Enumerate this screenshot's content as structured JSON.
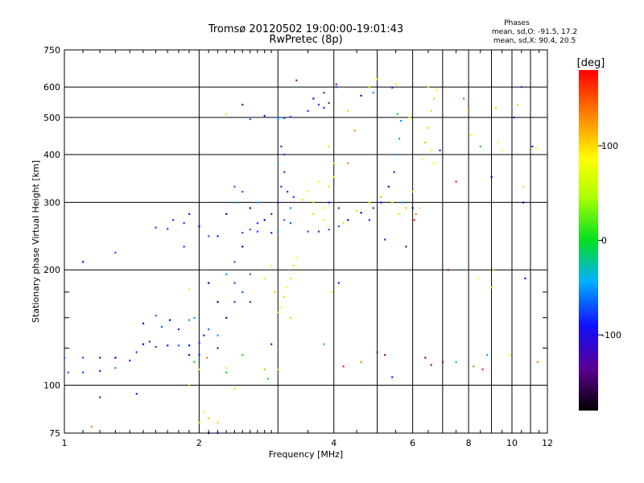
{
  "chart_data": {
    "type": "scatter",
    "title": "Tromsø 20120502 19:00:00-19:01:43",
    "subtitle": "RwPretec (8p)",
    "stats": {
      "heading": "Phases",
      "line1": "mean, sd,O: -91.5, 17.2",
      "line2": "mean, sd,X:  90.4, 20.5"
    },
    "xlabel": "Frequency [MHz]",
    "ylabel": "Stationary phase Virtual Height [km]",
    "x_scale": "log",
    "y_scale": "log",
    "xlim": [
      1,
      12
    ],
    "ylim": [
      75,
      750
    ],
    "x_ticks": [
      1,
      2,
      4,
      6,
      8,
      10,
      12
    ],
    "x_tick_labels": [
      "1",
      "2",
      "4",
      "6",
      "8",
      "10",
      "12"
    ],
    "x_minor_ticks": [
      3,
      5,
      7,
      9,
      11
    ],
    "y_ticks": [
      75,
      100,
      200,
      300,
      400,
      500,
      600,
      750
    ],
    "y_tick_labels": [
      "75",
      "100",
      "200",
      "300",
      "400",
      "500",
      "600",
      "750"
    ],
    "y_minor_ticks": [
      125,
      150,
      175
    ],
    "grid": true,
    "colorbar": {
      "label": "[deg]",
      "range": [
        -180,
        180
      ],
      "ticks": [
        100,
        0,
        -100
      ],
      "tick_labels": [
        "100",
        "0",
        "-100"
      ]
    },
    "series": [
      {
        "kind": "o-mode",
        "points": [
          [
            1.0,
            118
          ],
          [
            1.1,
            118
          ],
          [
            1.2,
            118
          ],
          [
            1.3,
            118
          ],
          [
            1.02,
            108
          ],
          [
            1.1,
            108
          ],
          [
            1.2,
            109
          ],
          [
            1.3,
            111
          ],
          [
            1.4,
            116
          ],
          [
            1.45,
            122
          ],
          [
            1.5,
            128
          ],
          [
            1.55,
            130
          ],
          [
            1.6,
            126
          ],
          [
            1.7,
            127
          ],
          [
            1.8,
            127
          ],
          [
            1.9,
            127
          ],
          [
            2.0,
            129
          ],
          [
            1.5,
            145
          ],
          [
            1.6,
            152
          ],
          [
            1.65,
            142
          ],
          [
            1.72,
            148
          ],
          [
            1.8,
            140
          ],
          [
            1.9,
            148
          ],
          [
            1.95,
            150
          ],
          [
            2.05,
            135
          ],
          [
            2.1,
            140
          ],
          [
            2.2,
            135
          ],
          [
            2.3,
            150
          ],
          [
            2.4,
            165
          ],
          [
            2.5,
            175
          ],
          [
            2.6,
            165
          ],
          [
            2.2,
            165
          ],
          [
            2.1,
            185
          ],
          [
            2.3,
            195
          ],
          [
            2.4,
            210
          ],
          [
            2.5,
            230
          ],
          [
            2.6,
            255
          ],
          [
            2.7,
            265
          ],
          [
            2.8,
            270
          ],
          [
            2.9,
            280
          ],
          [
            2.5,
            250
          ],
          [
            2.7,
            252
          ],
          [
            2.9,
            250
          ],
          [
            3.0,
            252
          ],
          [
            2.3,
            280
          ],
          [
            2.4,
            300
          ],
          [
            2.5,
            320
          ],
          [
            2.6,
            290
          ],
          [
            1.6,
            258
          ],
          [
            1.7,
            256
          ],
          [
            1.75,
            270
          ],
          [
            1.85,
            265
          ],
          [
            1.9,
            280
          ],
          [
            2.0,
            260
          ],
          [
            2.1,
            245
          ],
          [
            2.2,
            245
          ],
          [
            3.0,
            300
          ],
          [
            3.05,
            330
          ],
          [
            3.1,
            360
          ],
          [
            3.15,
            320
          ],
          [
            3.2,
            290
          ],
          [
            3.25,
            310
          ],
          [
            3.1,
            270
          ],
          [
            3.2,
            265
          ],
          [
            3.5,
            252
          ],
          [
            3.7,
            252
          ],
          [
            3.9,
            255
          ],
          [
            4.1,
            260
          ],
          [
            4.3,
            270
          ],
          [
            4.6,
            282
          ],
          [
            4.9,
            290
          ],
          [
            5.1,
            300
          ],
          [
            5.3,
            330
          ],
          [
            5.45,
            360
          ],
          [
            5.55,
            400
          ],
          [
            5.6,
            440
          ],
          [
            5.65,
            490
          ],
          [
            3.0,
            380
          ],
          [
            3.05,
            420
          ],
          [
            3.1,
            400
          ],
          [
            3.0,
            500
          ],
          [
            3.1,
            498
          ],
          [
            3.2,
            502
          ],
          [
            3.5,
            520
          ],
          [
            3.6,
            560
          ],
          [
            3.7,
            540
          ],
          [
            3.8,
            530
          ],
          [
            3.9,
            545
          ],
          [
            4.6,
            570
          ],
          [
            4.9,
            580
          ],
          [
            5.4,
            598
          ],
          [
            4.05,
            600
          ],
          [
            3.8,
            580
          ],
          [
            2.6,
            495
          ],
          [
            2.8,
            505
          ],
          [
            3.0,
            495
          ],
          [
            2.4,
            330
          ],
          [
            2.7,
            300
          ],
          [
            2.4,
            185
          ],
          [
            2.6,
            195
          ],
          [
            3.9,
            300
          ],
          [
            4.1,
            290
          ],
          [
            5.7,
            300
          ],
          [
            6.0,
            290
          ],
          [
            1.45,
            95
          ],
          [
            2.1,
            75
          ],
          [
            2.2,
            75
          ],
          [
            1.85,
            230
          ],
          [
            1.2,
            93
          ],
          [
            8.8,
            120
          ],
          [
            9.0,
            350
          ],
          [
            10.5,
            600
          ],
          [
            10.6,
            300
          ],
          [
            10.7,
            190
          ],
          [
            11.1,
            420
          ],
          [
            1.1,
            210
          ],
          [
            1.3,
            222
          ],
          [
            5.2,
            240
          ],
          [
            4.8,
            270
          ]
        ]
      },
      {
        "kind": "x-mode",
        "points": [
          [
            3.05,
            160
          ],
          [
            3.1,
            170
          ],
          [
            3.15,
            180
          ],
          [
            3.2,
            190
          ],
          [
            3.25,
            205
          ],
          [
            3.3,
            215
          ],
          [
            3.0,
            155
          ],
          [
            3.2,
            150
          ],
          [
            3.4,
            305
          ],
          [
            3.6,
            300
          ],
          [
            3.8,
            290
          ],
          [
            3.5,
            320
          ],
          [
            3.7,
            340
          ],
          [
            3.9,
            330
          ],
          [
            4.0,
            350
          ],
          [
            3.6,
            280
          ],
          [
            3.8,
            270
          ],
          [
            4.2,
            265
          ],
          [
            4.5,
            285
          ],
          [
            4.8,
            300
          ],
          [
            5.1,
            310
          ],
          [
            5.4,
            300
          ],
          [
            5.8,
            290
          ],
          [
            6.0,
            320
          ],
          [
            6.3,
            390
          ],
          [
            6.4,
            430
          ],
          [
            6.5,
            470
          ],
          [
            6.6,
            520
          ],
          [
            6.7,
            560
          ],
          [
            6.8,
            590
          ],
          [
            6.5,
            600
          ],
          [
            6.6,
            410
          ],
          [
            6.7,
            380
          ],
          [
            5.0,
            630
          ],
          [
            4.8,
            600
          ],
          [
            5.5,
            610
          ],
          [
            3.9,
            420
          ],
          [
            4.0,
            380
          ],
          [
            4.3,
            520
          ],
          [
            2.3,
            510
          ],
          [
            2.9,
            205
          ],
          [
            2.8,
            190
          ],
          [
            2.95,
            175
          ],
          [
            3.95,
            175
          ],
          [
            6.2,
            290
          ],
          [
            5.6,
            280
          ],
          [
            9.2,
            530
          ],
          [
            9.3,
            430
          ],
          [
            9.1,
            200
          ],
          [
            10.3,
            540
          ],
          [
            10.6,
            330
          ],
          [
            2.05,
            85
          ],
          [
            2.1,
            82
          ],
          [
            2.2,
            80
          ],
          [
            2.0,
            80
          ],
          [
            1.9,
            100
          ],
          [
            2.3,
            111
          ],
          [
            2.4,
            98
          ],
          [
            2.0,
            110
          ],
          [
            3.0,
            110
          ],
          [
            2.8,
            110
          ],
          [
            9.0,
            180
          ],
          [
            8.4,
            190
          ],
          [
            1.9,
            178
          ]
        ]
      },
      {
        "kind": "scattered",
        "points": [
          [
            1.95,
            115
          ],
          [
            2.0,
            120
          ],
          [
            2.08,
            118
          ],
          [
            1.9,
            120
          ],
          [
            2.2,
            125
          ],
          [
            2.5,
            120
          ],
          [
            2.3,
            108
          ],
          [
            5.9,
            500
          ],
          [
            6.9,
            410
          ],
          [
            7.5,
            340
          ],
          [
            8.0,
            520
          ],
          [
            8.5,
            420
          ],
          [
            9.5,
            410
          ],
          [
            10.1,
            500
          ],
          [
            5.2,
            120
          ],
          [
            5.4,
            105
          ],
          [
            6.4,
            118
          ],
          [
            7.0,
            115
          ],
          [
            7.5,
            115
          ],
          [
            8.2,
            112
          ],
          [
            8.6,
            110
          ],
          [
            9.9,
            120
          ],
          [
            3.8,
            128
          ],
          [
            4.2,
            112
          ],
          [
            4.6,
            115
          ],
          [
            5.0,
            122
          ],
          [
            2.9,
            128
          ],
          [
            6.6,
            113
          ],
          [
            5.8,
            230
          ],
          [
            6.1,
            280
          ],
          [
            8.1,
            450
          ],
          [
            4.1,
            185
          ],
          [
            4.3,
            380
          ],
          [
            2.5,
            540
          ],
          [
            3.3,
            625
          ],
          [
            1.15,
            78
          ],
          [
            11.4,
            115
          ],
          [
            11.3,
            415
          ],
          [
            2.85,
            104
          ],
          [
            6.05,
            270
          ],
          [
            7.2,
            200
          ],
          [
            7.8,
            560
          ],
          [
            4.05,
            610
          ],
          [
            4.45,
            462
          ],
          [
            5.55,
            510
          ]
        ]
      }
    ]
  }
}
